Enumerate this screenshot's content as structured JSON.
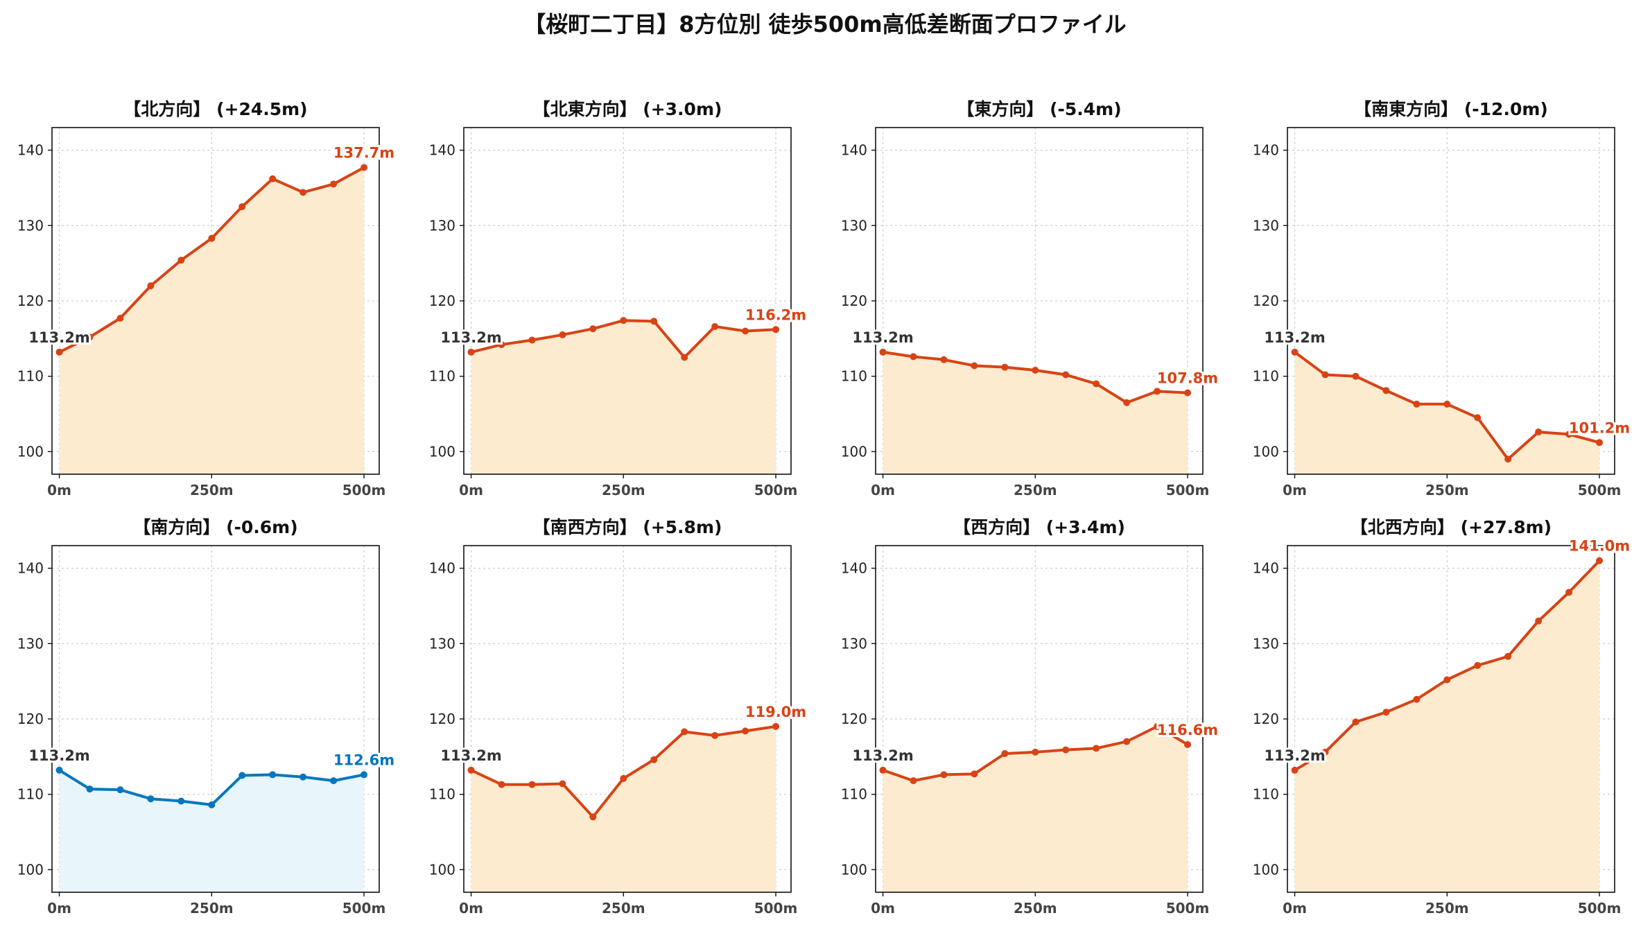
{
  "title": "【桜町二丁目】8方位別 徒歩500m高低差断面プロファイル",
  "colors": {
    "up": "#d84315",
    "down": "#0277bd",
    "up_fill": "#fdebd0",
    "down_fill": "#e8f5fb",
    "start_label": "#333333"
  },
  "chart_data": [
    {
      "type": "area",
      "title": "【北方向】 (+24.5m)",
      "x": [
        0,
        50,
        100,
        150,
        200,
        250,
        300,
        350,
        400,
        450,
        500
      ],
      "values": [
        113.2,
        115.2,
        117.7,
        122.0,
        125.4,
        128.3,
        132.5,
        136.2,
        134.4,
        135.5,
        137.7
      ],
      "start_label": "113.2m",
      "end_label": "137.7m",
      "ylim": [
        97,
        143
      ],
      "yticks": [
        "100",
        "110",
        "120",
        "130",
        "140"
      ],
      "xticks": [
        "0m",
        "250m",
        "500m"
      ],
      "color": "up",
      "grid": true
    },
    {
      "type": "area",
      "title": "【北東方向】 (+3.0m)",
      "x": [
        0,
        50,
        100,
        150,
        200,
        250,
        300,
        350,
        400,
        450,
        500
      ],
      "values": [
        113.2,
        114.2,
        114.8,
        115.5,
        116.3,
        117.4,
        117.3,
        112.5,
        116.6,
        116.0,
        116.2
      ],
      "start_label": "113.2m",
      "end_label": "116.2m",
      "ylim": [
        97,
        143
      ],
      "yticks": [
        "100",
        "110",
        "120",
        "130",
        "140"
      ],
      "xticks": [
        "0m",
        "250m",
        "500m"
      ],
      "color": "up",
      "grid": true
    },
    {
      "type": "area",
      "title": "【東方向】 (-5.4m)",
      "x": [
        0,
        50,
        100,
        150,
        200,
        250,
        300,
        350,
        400,
        450,
        500
      ],
      "values": [
        113.2,
        112.6,
        112.2,
        111.4,
        111.2,
        110.8,
        110.2,
        109.0,
        106.5,
        108.0,
        107.8
      ],
      "start_label": "113.2m",
      "end_label": "107.8m",
      "ylim": [
        97,
        143
      ],
      "yticks": [
        "100",
        "110",
        "120",
        "130",
        "140"
      ],
      "xticks": [
        "0m",
        "250m",
        "500m"
      ],
      "color": "up",
      "grid": true
    },
    {
      "type": "area",
      "title": "【南東方向】 (-12.0m)",
      "x": [
        0,
        50,
        100,
        150,
        200,
        250,
        300,
        350,
        400,
        450,
        500
      ],
      "values": [
        113.2,
        110.2,
        110.0,
        108.1,
        106.3,
        106.3,
        104.5,
        99.0,
        102.6,
        102.3,
        101.2
      ],
      "start_label": "113.2m",
      "end_label": "101.2m",
      "ylim": [
        97,
        143
      ],
      "yticks": [
        "100",
        "110",
        "120",
        "130",
        "140"
      ],
      "xticks": [
        "0m",
        "250m",
        "500m"
      ],
      "color": "up",
      "grid": true
    },
    {
      "type": "area",
      "title": "【南方向】 (-0.6m)",
      "x": [
        0,
        50,
        100,
        150,
        200,
        250,
        300,
        350,
        400,
        450,
        500
      ],
      "values": [
        113.2,
        110.7,
        110.6,
        109.4,
        109.1,
        108.6,
        112.5,
        112.6,
        112.3,
        111.8,
        112.6
      ],
      "start_label": "113.2m",
      "end_label": "112.6m",
      "ylim": [
        97,
        143
      ],
      "yticks": [
        "100",
        "110",
        "120",
        "130",
        "140"
      ],
      "xticks": [
        "0m",
        "250m",
        "500m"
      ],
      "color": "down",
      "grid": true
    },
    {
      "type": "area",
      "title": "【南西方向】 (+5.8m)",
      "x": [
        0,
        50,
        100,
        150,
        200,
        250,
        300,
        350,
        400,
        450,
        500
      ],
      "values": [
        113.2,
        111.3,
        111.3,
        111.4,
        107.0,
        112.1,
        114.6,
        118.3,
        117.8,
        118.4,
        119.0
      ],
      "start_label": "113.2m",
      "end_label": "119.0m",
      "ylim": [
        97,
        143
      ],
      "yticks": [
        "100",
        "110",
        "120",
        "130",
        "140"
      ],
      "xticks": [
        "0m",
        "250m",
        "500m"
      ],
      "color": "up",
      "grid": true
    },
    {
      "type": "area",
      "title": "【西方向】 (+3.4m)",
      "x": [
        0,
        50,
        100,
        150,
        200,
        250,
        300,
        350,
        400,
        450,
        500
      ],
      "values": [
        113.2,
        111.8,
        112.6,
        112.7,
        115.4,
        115.6,
        115.9,
        116.1,
        117.0,
        119.0,
        116.6
      ],
      "start_label": "113.2m",
      "end_label": "116.6m",
      "ylim": [
        97,
        143
      ],
      "yticks": [
        "100",
        "110",
        "120",
        "130",
        "140"
      ],
      "xticks": [
        "0m",
        "250m",
        "500m"
      ],
      "color": "up",
      "grid": true
    },
    {
      "type": "area",
      "title": "【北西方向】 (+27.8m)",
      "x": [
        0,
        50,
        100,
        150,
        200,
        250,
        300,
        350,
        400,
        450,
        500
      ],
      "values": [
        113.2,
        115.6,
        119.6,
        120.9,
        122.6,
        125.2,
        127.1,
        128.3,
        133.0,
        136.8,
        141.0
      ],
      "start_label": "113.2m",
      "end_label": "141.0m",
      "ylim": [
        97,
        143
      ],
      "yticks": [
        "100",
        "110",
        "120",
        "130",
        "140"
      ],
      "xticks": [
        "0m",
        "250m",
        "500m"
      ],
      "color": "up",
      "grid": true
    }
  ]
}
